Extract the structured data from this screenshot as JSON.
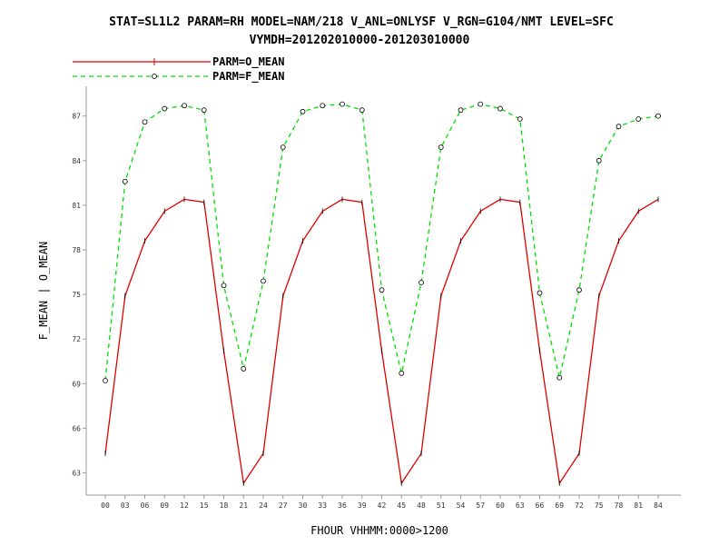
{
  "chart_data": {
    "type": "line",
    "title": "STAT=SL1L2 PARAM=RH MODEL=NAM/218 V_ANL=ONLYSF V_RGN=G104/NMT LEVEL=SFC",
    "subtitle": "VYMDH=201202010000-201203010000",
    "xlabel": "FHOUR VHHMM:0000>1200",
    "ylabel": "F_MEAN | O_MEAN",
    "ylim": [
      61.5,
      89
    ],
    "yticks": [
      "63",
      "66",
      "69",
      "72",
      "75",
      "78",
      "81",
      "84",
      "87"
    ],
    "x": [
      "00",
      "03",
      "06",
      "09",
      "12",
      "15",
      "18",
      "21",
      "24",
      "27",
      "30",
      "33",
      "36",
      "39",
      "42",
      "45",
      "48",
      "51",
      "54",
      "57",
      "60",
      "63",
      "66",
      "69",
      "72",
      "75",
      "78",
      "81",
      "84"
    ],
    "series": [
      {
        "name": "PARM=O_MEAN",
        "color": "#e00000",
        "dash": "solid",
        "marker": "plus",
        "values": [
          64.3,
          74.9,
          78.6,
          80.6,
          81.4,
          81.2,
          71.2,
          62.3,
          64.3,
          74.9,
          78.6,
          80.6,
          81.4,
          81.2,
          71.2,
          62.3,
          64.3,
          74.9,
          78.6,
          80.6,
          81.4,
          81.2,
          71.2,
          62.3,
          64.3,
          74.9,
          78.6,
          80.6,
          81.4
        ]
      },
      {
        "name": "PARM=F_MEAN",
        "color": "#00e000",
        "dash": "dashed",
        "marker": "circle",
        "values": [
          69.2,
          82.6,
          86.6,
          87.5,
          87.7,
          87.4,
          75.6,
          70.0,
          75.9,
          84.9,
          87.3,
          87.7,
          87.8,
          87.4,
          75.3,
          69.7,
          75.8,
          84.9,
          87.4,
          87.8,
          87.5,
          86.8,
          75.1,
          69.4,
          75.3,
          84.0,
          86.3,
          86.8,
          87.0
        ]
      }
    ],
    "grid": false,
    "legend": "top-left"
  }
}
